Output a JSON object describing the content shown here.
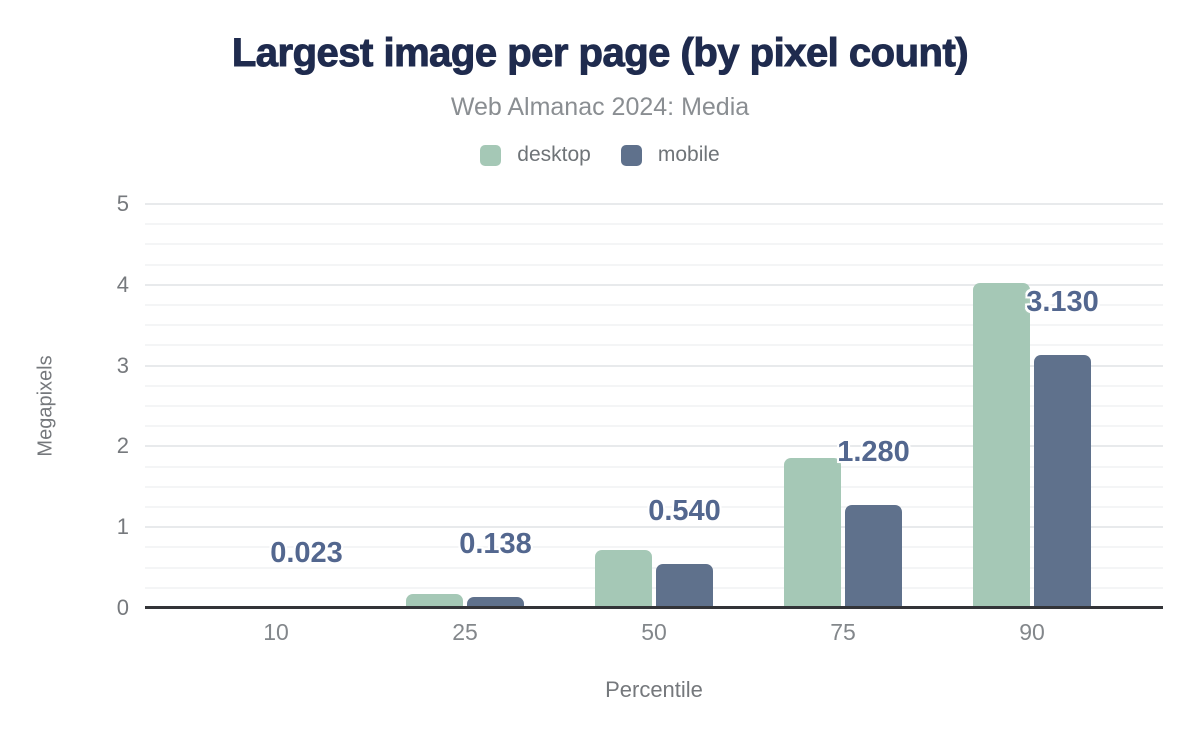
{
  "title": "Largest image per page (by pixel count)",
  "subtitle": "Web Almanac 2024: Media",
  "legend": {
    "items": [
      {
        "label": "desktop",
        "color": "#a5c8b6"
      },
      {
        "label": "mobile",
        "color": "#5f718c"
      }
    ]
  },
  "chart_data": {
    "type": "bar",
    "title": "Largest image per page (by pixel count)",
    "subtitle": "Web Almanac 2024: Media",
    "xlabel": "Percentile",
    "ylabel": "Megapixels",
    "categories": [
      "10",
      "25",
      "50",
      "75",
      "90"
    ],
    "series": [
      {
        "name": "desktop",
        "color": "#a5c8b6",
        "values": [
          0.03,
          0.17,
          0.72,
          1.86,
          4.02
        ]
      },
      {
        "name": "mobile",
        "color": "#5f718c",
        "values": [
          0.023,
          0.138,
          0.54,
          1.28,
          3.13
        ],
        "data_labels": [
          "0.023",
          "0.138",
          "0.540",
          "1.280",
          "3.130"
        ],
        "data_label_color": "#53678f"
      }
    ],
    "ylim": [
      0,
      5
    ],
    "y_ticks": [
      "0",
      "1",
      "2",
      "3",
      "4",
      "5"
    ],
    "y_major_step": 1,
    "y_minor_step": 0.25,
    "grid": true,
    "legend_position": "top",
    "axis_line_color": "#333438"
  }
}
